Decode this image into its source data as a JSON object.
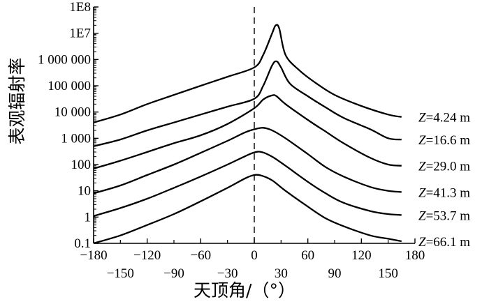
{
  "chart_data": {
    "type": "line",
    "title": "",
    "xlabel": "天顶角/（°）",
    "ylabel": "表观辐射率",
    "xlim": [
      -180,
      180
    ],
    "ylim_log10": [
      -1,
      8
    ],
    "y_scale": "log",
    "x_ticks_row1": [
      {
        "value": -180,
        "label": "−180"
      },
      {
        "value": -120,
        "label": "−120"
      },
      {
        "value": -60,
        "label": "−60"
      },
      {
        "value": 0,
        "label": "0"
      },
      {
        "value": 60,
        "label": "60"
      },
      {
        "value": 120,
        "label": "120"
      },
      {
        "value": 180,
        "label": "180"
      }
    ],
    "x_ticks_row2": [
      {
        "value": -150,
        "label": "−150"
      },
      {
        "value": -90,
        "label": "−90"
      },
      {
        "value": -30,
        "label": "−30"
      },
      {
        "value": 30,
        "label": "30"
      },
      {
        "value": 90,
        "label": "90"
      },
      {
        "value": 150,
        "label": "150"
      }
    ],
    "y_ticks": [
      {
        "value": 0.1,
        "label": "0.1"
      },
      {
        "value": 1,
        "label": "1"
      },
      {
        "value": 10,
        "label": "10"
      },
      {
        "value": 100,
        "label": "100"
      },
      {
        "value": 1000,
        "label": "1 000"
      },
      {
        "value": 10000,
        "label": "10 000"
      },
      {
        "value": 100000,
        "label": "100 000"
      },
      {
        "value": 1000000,
        "label": "1 000 000"
      },
      {
        "value": 10000000,
        "label": "1E7"
      },
      {
        "value": 100000000,
        "label": "1E8"
      }
    ],
    "reference_line_x": 0,
    "series": [
      {
        "label_italic": "Z",
        "label_rest": "=4.24 m",
        "points": [
          [
            -180,
            4000
          ],
          [
            -150,
            8000
          ],
          [
            -120,
            20000
          ],
          [
            -90,
            45000
          ],
          [
            -60,
            100000
          ],
          [
            -30,
            220000
          ],
          [
            0,
            500000
          ],
          [
            10,
            1500000
          ],
          [
            20,
            10000000
          ],
          [
            24,
            20000000
          ],
          [
            28,
            15000000
          ],
          [
            35,
            1500000
          ],
          [
            50,
            400000
          ],
          [
            70,
            120000
          ],
          [
            90,
            45000
          ],
          [
            120,
            17000
          ],
          [
            150,
            8000
          ],
          [
            165,
            6500
          ]
        ]
      },
      {
        "label_italic": "Z",
        "label_rest": "=16.6 m",
        "points": [
          [
            -180,
            500
          ],
          [
            -150,
            900
          ],
          [
            -120,
            2000
          ],
          [
            -90,
            4000
          ],
          [
            -60,
            8000
          ],
          [
            -30,
            16000
          ],
          [
            0,
            32000
          ],
          [
            10,
            100000
          ],
          [
            20,
            600000
          ],
          [
            25,
            850000
          ],
          [
            30,
            500000
          ],
          [
            40,
            120000
          ],
          [
            60,
            40000
          ],
          [
            80,
            15000
          ],
          [
            100,
            6000
          ],
          [
            130,
            2200
          ],
          [
            150,
            1000
          ],
          [
            165,
            900
          ]
        ]
      },
      {
        "label_italic": "Z",
        "label_rest": "=29.0 m",
        "points": [
          [
            -180,
            70
          ],
          [
            -150,
            140
          ],
          [
            -120,
            300
          ],
          [
            -90,
            650
          ],
          [
            -60,
            1300
          ],
          [
            -30,
            3500
          ],
          [
            0,
            14000
          ],
          [
            10,
            30000
          ],
          [
            20,
            43000
          ],
          [
            25,
            40000
          ],
          [
            35,
            20000
          ],
          [
            60,
            5000
          ],
          [
            80,
            1800
          ],
          [
            100,
            650
          ],
          [
            130,
            180
          ],
          [
            150,
            100
          ],
          [
            165,
            90
          ]
        ]
      },
      {
        "label_italic": "Z",
        "label_rest": "=41.3 m",
        "points": [
          [
            -180,
            8
          ],
          [
            -150,
            16
          ],
          [
            -120,
            40
          ],
          [
            -90,
            100
          ],
          [
            -60,
            280
          ],
          [
            -30,
            800
          ],
          [
            -10,
            1700
          ],
          [
            0,
            2200
          ],
          [
            10,
            2500
          ],
          [
            20,
            2000
          ],
          [
            35,
            1000
          ],
          [
            60,
            250
          ],
          [
            80,
            80
          ],
          [
            100,
            35
          ],
          [
            130,
            14
          ],
          [
            150,
            10
          ],
          [
            165,
            9
          ]
        ]
      },
      {
        "label_italic": "Z",
        "label_rest": "=53.7 m",
        "points": [
          [
            -180,
            1.1
          ],
          [
            -150,
            2.2
          ],
          [
            -120,
            5
          ],
          [
            -90,
            13
          ],
          [
            -60,
            35
          ],
          [
            -30,
            100
          ],
          [
            -10,
            210
          ],
          [
            0,
            290
          ],
          [
            8,
            300
          ],
          [
            20,
            200
          ],
          [
            35,
            90
          ],
          [
            60,
            22
          ],
          [
            80,
            8
          ],
          [
            100,
            3.5
          ],
          [
            130,
            1.7
          ],
          [
            150,
            1.3
          ],
          [
            165,
            1.2
          ]
        ]
      },
      {
        "label_italic": "Z",
        "label_rest": "=66.1 m",
        "points": [
          [
            -180,
            0.1
          ],
          [
            -150,
            0.2
          ],
          [
            -120,
            0.5
          ],
          [
            -90,
            1.3
          ],
          [
            -60,
            4
          ],
          [
            -30,
            13
          ],
          [
            -10,
            30
          ],
          [
            0,
            40
          ],
          [
            8,
            38
          ],
          [
            20,
            25
          ],
          [
            35,
            10
          ],
          [
            60,
            2.5
          ],
          [
            80,
            0.9
          ],
          [
            100,
            0.45
          ],
          [
            130,
            0.2
          ],
          [
            150,
            0.15
          ],
          [
            165,
            0.12
          ]
        ]
      }
    ]
  }
}
